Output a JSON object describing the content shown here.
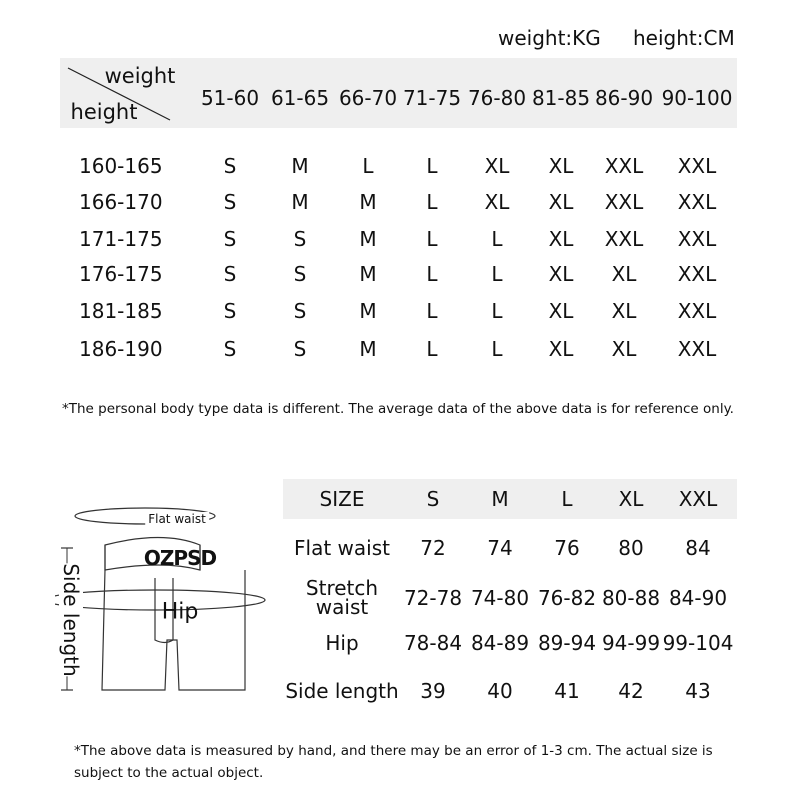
{
  "units": {
    "weight": "weight:KG",
    "height": "height:CM"
  },
  "size_by_body": {
    "corner": {
      "weight": "weight",
      "height": "height"
    },
    "weight_ranges": [
      "51-60",
      "61-65",
      "66-70",
      "71-75",
      "76-80",
      "81-85",
      "86-90",
      "90-100"
    ],
    "rows": [
      {
        "height": "160-165",
        "sizes": [
          "S",
          "M",
          "L",
          "L",
          "XL",
          "XL",
          "XXL",
          "XXL"
        ]
      },
      {
        "height": "166-170",
        "sizes": [
          "S",
          "M",
          "M",
          "L",
          "XL",
          "XL",
          "XXL",
          "XXL"
        ]
      },
      {
        "height": "171-175",
        "sizes": [
          "S",
          "S",
          "M",
          "L",
          "L",
          "XL",
          "XXL",
          "XXL"
        ]
      },
      {
        "height": "176-175",
        "sizes": [
          "S",
          "S",
          "M",
          "L",
          "L",
          "XL",
          "XL",
          "XXL"
        ]
      },
      {
        "height": "181-185",
        "sizes": [
          "S",
          "S",
          "M",
          "L",
          "L",
          "XL",
          "XL",
          "XXL"
        ]
      },
      {
        "height": "186-190",
        "sizes": [
          "S",
          "S",
          "M",
          "L",
          "L",
          "XL",
          "XL",
          "XXL"
        ]
      }
    ]
  },
  "note1": "*The personal body type data is different. The average data of the above data is for reference only.",
  "diagram": {
    "flat_waist": "Flat waist",
    "brand": "OZPSD",
    "hip": "Hip",
    "side_length": "Side length"
  },
  "measure_table": {
    "header": [
      "SIZE",
      "S",
      "M",
      "L",
      "XL",
      "XXL"
    ],
    "rows": [
      {
        "label": "Flat waist",
        "values": [
          "72",
          "74",
          "76",
          "80",
          "84"
        ]
      },
      {
        "label": "Stretch waist",
        "values": [
          "72-78",
          "74-80",
          "76-82",
          "80-88",
          "84-90"
        ]
      },
      {
        "label": "Hip",
        "values": [
          "78-84",
          "84-89",
          "89-94",
          "94-99",
          "99-104"
        ]
      },
      {
        "label": "Side length",
        "values": [
          "39",
          "40",
          "41",
          "42",
          "43"
        ]
      }
    ]
  },
  "note2": "*The above data is measured by hand, and there may be an error of 1-3 cm. The actual size is subject to the actual object."
}
